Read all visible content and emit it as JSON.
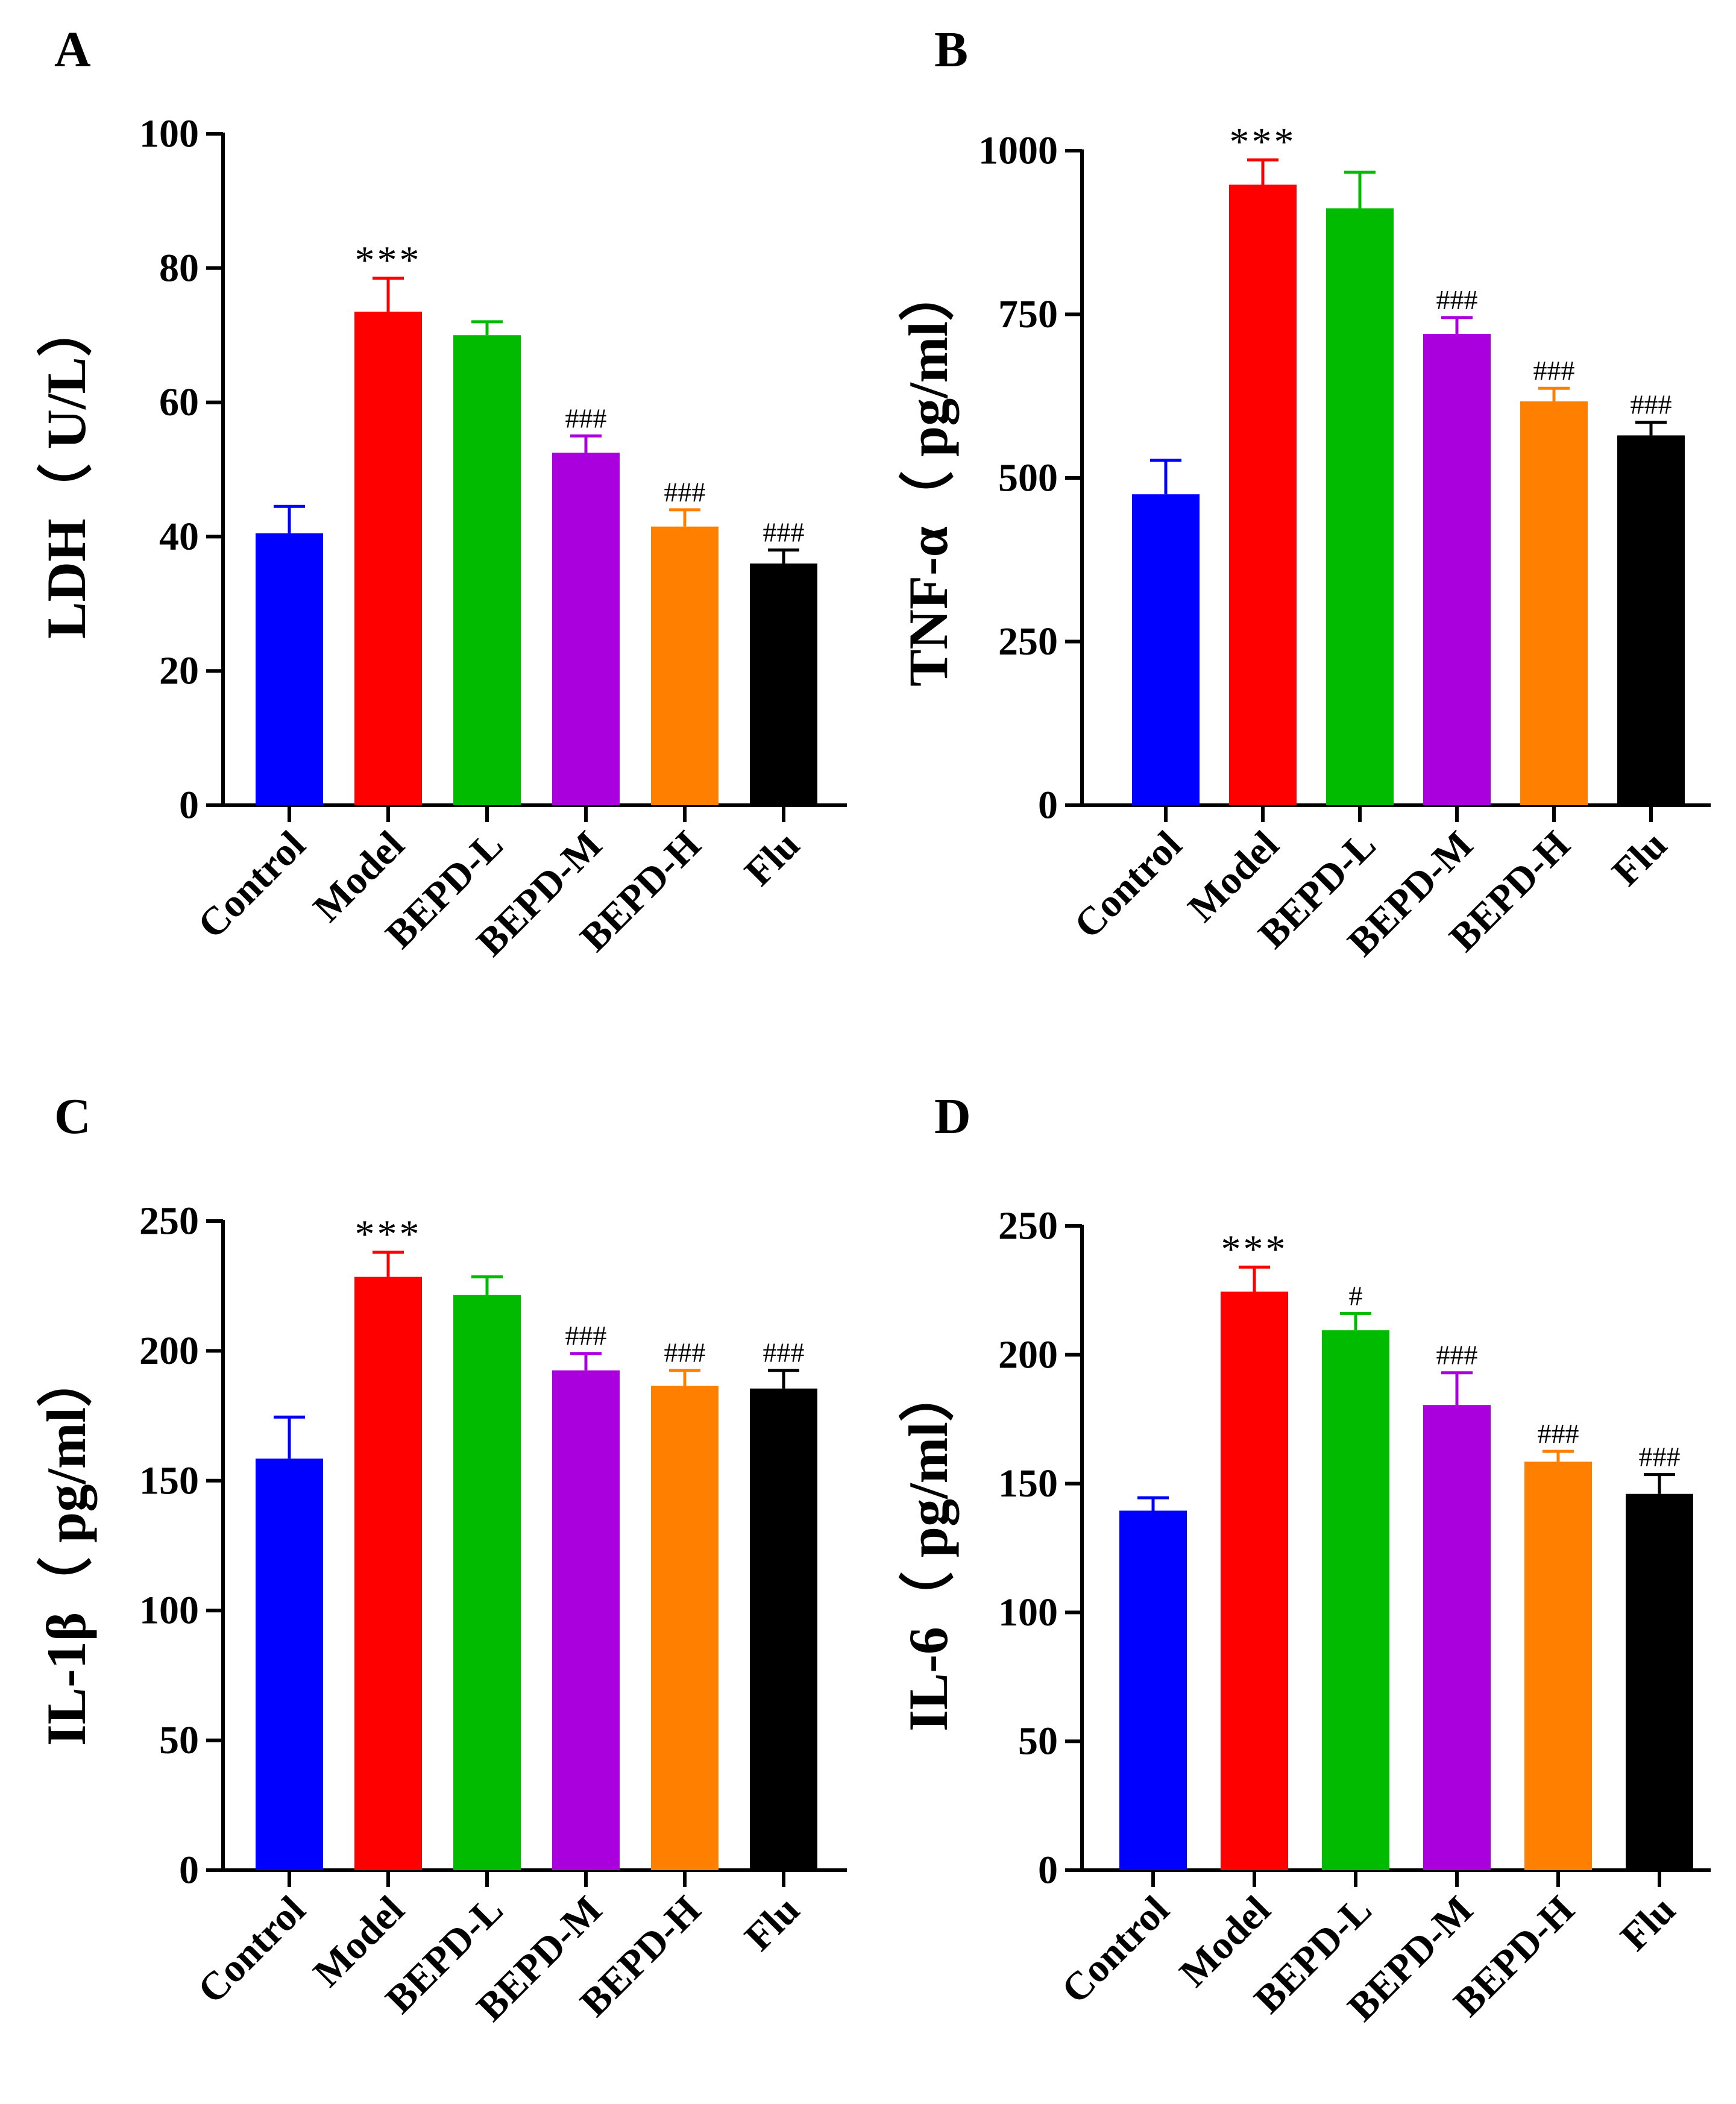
{
  "chart_data": [
    {
      "type": "bar",
      "panel": "A",
      "ylabel": "LDH（ U/L）",
      "categories": [
        "Control",
        "Model",
        "BEPD-L",
        "BEPD-M",
        "BEPD-H",
        "Flu"
      ],
      "values": [
        40.5,
        73.5,
        70,
        52.5,
        41.5,
        36
      ],
      "errors": [
        4,
        5,
        2,
        2.5,
        2.5,
        2
      ],
      "significance": [
        "",
        "***",
        "",
        "###",
        "###",
        "###"
      ],
      "colors": [
        "#0000ff",
        "#ff0000",
        "#00bb00",
        "#aa00dd",
        "#ff8000",
        "#000000"
      ],
      "yticks": [
        0,
        20,
        40,
        60,
        80,
        100
      ],
      "ylim": [
        0,
        100
      ]
    },
    {
      "type": "bar",
      "panel": "B",
      "ylabel": "TNF-α（ pg/ml）",
      "categories": [
        "Control",
        "Model",
        "BEPD-L",
        "BEPD-M",
        "BEPD-H",
        "Flu"
      ],
      "values": [
        475,
        948,
        912,
        720,
        617,
        565
      ],
      "errors": [
        52,
        38,
        55,
        25,
        20,
        20
      ],
      "significance": [
        "",
        "***",
        "",
        "###",
        "###",
        "###"
      ],
      "colors": [
        "#0000ff",
        "#ff0000",
        "#00bb00",
        "#aa00dd",
        "#ff8000",
        "#000000"
      ],
      "yticks": [
        0,
        250,
        500,
        750,
        1000
      ],
      "ylim": [
        0,
        1000
      ]
    },
    {
      "type": "bar",
      "panel": "C",
      "ylabel": "IL-1β（ pg/ml）",
      "categories": [
        "Control",
        "Model",
        "BEPD-L",
        "BEPD-M",
        "BEPD-H",
        "Flu"
      ],
      "values": [
        158.5,
        228.5,
        221.5,
        192.5,
        186.5,
        185.5
      ],
      "errors": [
        16,
        9.5,
        7,
        6.5,
        6,
        7
      ],
      "significance": [
        "",
        "***",
        "",
        "###",
        "###",
        "###"
      ],
      "colors": [
        "#0000ff",
        "#ff0000",
        "#00bb00",
        "#aa00dd",
        "#ff8000",
        "#000000"
      ],
      "yticks": [
        0,
        50,
        100,
        150,
        200,
        250
      ],
      "ylim": [
        0,
        250
      ]
    },
    {
      "type": "bar",
      "panel": "D",
      "ylabel": "IL-6（ pg/ml）",
      "categories": [
        "Control",
        "Model",
        "BEPD-L",
        "BEPD-M",
        "BEPD-H",
        "Flu"
      ],
      "values": [
        139.5,
        224.5,
        209.5,
        180.5,
        158.5,
        146
      ],
      "errors": [
        5,
        9.5,
        6.5,
        12.5,
        4,
        7.5
      ],
      "significance": [
        "",
        "***",
        "#",
        "###",
        "###",
        "###"
      ],
      "colors": [
        "#0000ff",
        "#ff0000",
        "#00bb00",
        "#aa00dd",
        "#ff8000",
        "#000000"
      ],
      "yticks": [
        0,
        50,
        100,
        150,
        200,
        250
      ],
      "ylim": [
        0,
        250
      ]
    }
  ]
}
